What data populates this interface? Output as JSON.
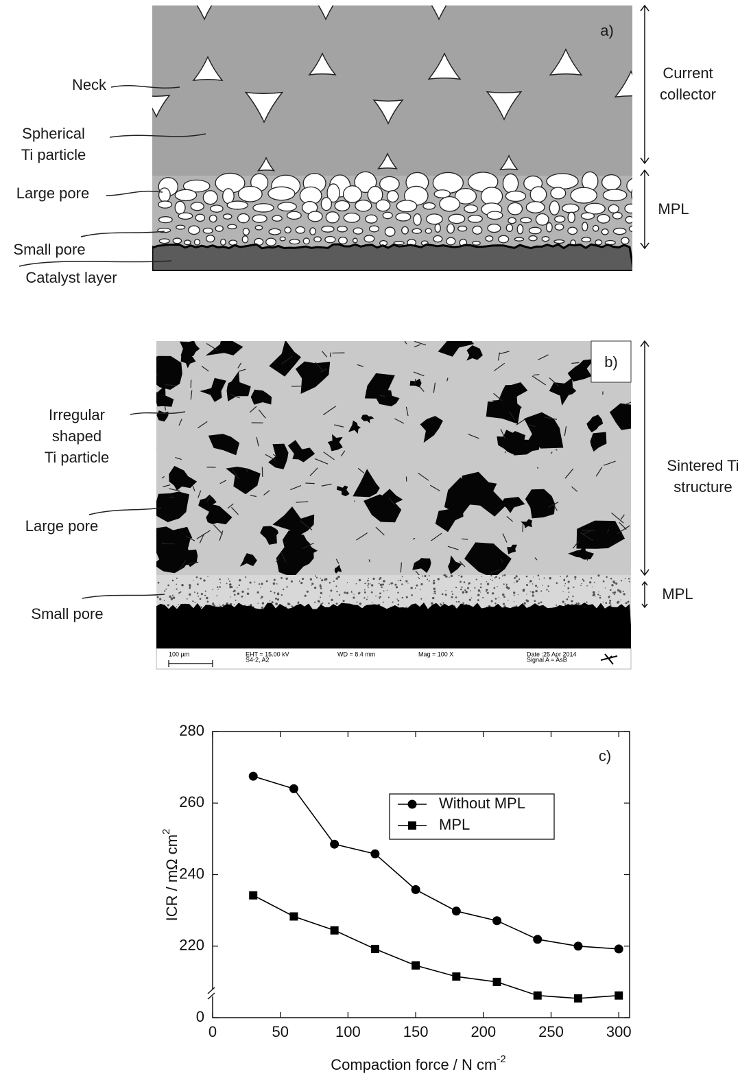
{
  "panel_a": {
    "tag": "a)",
    "labels": [
      [
        "Neck"
      ],
      [
        "Spherical",
        "Ti particle"
      ],
      [
        "Large pore"
      ],
      [
        "Small pore"
      ],
      [
        "Catalyst layer"
      ]
    ],
    "side_labels": [
      [
        "Current",
        "collector"
      ],
      [
        "MPL"
      ]
    ]
  },
  "panel_b": {
    "tag": "b)",
    "labels": [
      [
        "Irregular",
        "shaped",
        "Ti particle"
      ],
      [
        "Large pore"
      ],
      [
        "Small pore"
      ]
    ],
    "side_labels": [
      [
        "Sintered Ti",
        "structure"
      ],
      [
        "MPL"
      ]
    ],
    "info_bar": [
      "100 µm",
      "EHT = 15.00 kV",
      "S4-2, A2",
      "WD = 8.4 mm",
      "Mag = 100 X",
      "Date :25 Apr 2014",
      "Signal A = AsB"
    ]
  },
  "chart_data": {
    "type": "line",
    "tag": "c)",
    "xlabel": "Compaction force / N cm",
    "xlabel_sup": "-2",
    "ylabel": "ICR / mΩ cm",
    "ylabel_sup": "2",
    "x": [
      30,
      60,
      90,
      120,
      150,
      180,
      210,
      240,
      270,
      300
    ],
    "series": [
      {
        "name": "Without MPL",
        "marker": "circle",
        "color": "#000000",
        "values": [
          267.5,
          264.0,
          248.5,
          245.8,
          235.8,
          229.8,
          227.1,
          221.9,
          220.0,
          219.2
        ]
      },
      {
        "name": "MPL",
        "marker": "square",
        "color": "#000000",
        "values": [
          234.2,
          228.3,
          224.4,
          219.2,
          214.6,
          211.5,
          210.0,
          206.2,
          205.4,
          206.2
        ]
      }
    ],
    "xlim": [
      0,
      308
    ],
    "ylim": [
      0,
      280
    ],
    "ybreak": [
      0,
      200
    ],
    "xticks": [
      0,
      50,
      100,
      150,
      200,
      250,
      300
    ],
    "yticks": [
      0,
      220,
      240,
      260,
      280
    ],
    "legend": "upper right"
  }
}
